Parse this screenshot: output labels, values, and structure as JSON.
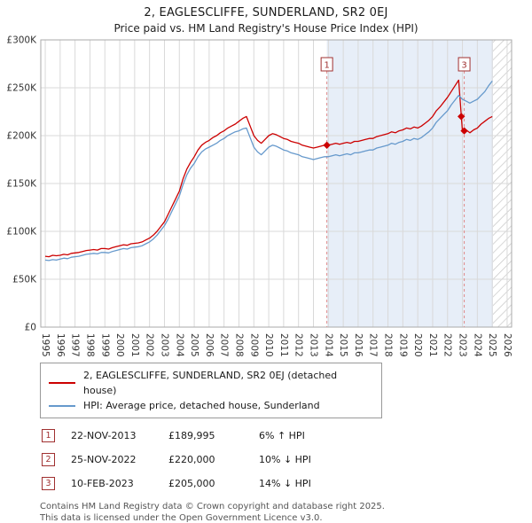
{
  "title": "2, EAGLESCLIFFE, SUNDERLAND, SR2 0EJ",
  "subtitle": "Price paid vs. HM Land Registry's House Price Index (HPI)",
  "chart_data": {
    "type": "line",
    "y_values_in": "GBP thousands",
    "xlim": [
      1994.7,
      2026.3
    ],
    "ylim": [
      0,
      300
    ],
    "x_ticks": [
      1995,
      1996,
      1997,
      1998,
      1999,
      2000,
      2001,
      2002,
      2003,
      2004,
      2005,
      2006,
      2007,
      2008,
      2009,
      2010,
      2011,
      2012,
      2013,
      2014,
      2015,
      2016,
      2017,
      2018,
      2019,
      2020,
      2021,
      2022,
      2023,
      2024,
      2025,
      2026
    ],
    "y_ticks": [
      0,
      50,
      100,
      150,
      200,
      250,
      300
    ],
    "y_tick_labels": [
      "£0",
      "£50K",
      "£100K",
      "£150K",
      "£200K",
      "£250K",
      "£300K"
    ],
    "grid": true,
    "legend_position": "below",
    "x_start": 1995,
    "x_step": 0.25,
    "shaded_region": [
      2013.9,
      2025.05
    ],
    "hatched_region": [
      2025.05,
      2026.3
    ],
    "colors": {
      "red_series": "#cc0000",
      "blue_series": "#6699cc",
      "shaded": "#e7eef8",
      "dashed": "#e08888",
      "grid": "#d9d9d9",
      "axis": "#aaaaaa",
      "marker_box": "#a03030"
    },
    "series": [
      {
        "name": "2, EAGLESCLIFFE, SUNDERLAND, SR2 0EJ (detached house)",
        "color": "#cc0000",
        "values": [
          74,
          73.5,
          75,
          74.5,
          75,
          76,
          75.5,
          77,
          77.5,
          78,
          79,
          80,
          80.5,
          81,
          80.5,
          82,
          82,
          81.5,
          83,
          84,
          85,
          86,
          85.5,
          87,
          87.5,
          88,
          89,
          91,
          93,
          96,
          100,
          105,
          110,
          118,
          126,
          134,
          142,
          155,
          165,
          172,
          178,
          185,
          190,
          193,
          195,
          198,
          200,
          203,
          205,
          208,
          210,
          212,
          215,
          218,
          220,
          210,
          200,
          195,
          192,
          196,
          200,
          202,
          201,
          199,
          197,
          196,
          194,
          193,
          192,
          190,
          189,
          188,
          187,
          188,
          189,
          190,
          190,
          191,
          192,
          191,
          192,
          193,
          192,
          194,
          194,
          195,
          196,
          197,
          197,
          199,
          200,
          201,
          202,
          204,
          203,
          205,
          206,
          208,
          207,
          209,
          208,
          210,
          213,
          216,
          220,
          226,
          230,
          235,
          240,
          246,
          252,
          258,
          205,
          206,
          203,
          206,
          208,
          212,
          215,
          218,
          220
        ]
      },
      {
        "name": "HPI: Average price, detached house, Sunderland",
        "color": "#6699cc",
        "values": [
          70,
          69.5,
          70.5,
          70,
          71,
          72,
          71.5,
          73,
          73.5,
          74,
          75,
          76,
          76.5,
          77,
          76.5,
          78,
          78,
          77.5,
          79,
          80,
          81,
          82,
          81.5,
          83,
          83.5,
          84,
          85,
          87,
          89,
          92,
          96,
          101,
          106,
          113,
          121,
          129,
          137,
          149,
          159,
          166,
          171,
          178,
          183,
          186,
          188,
          190,
          192,
          195,
          197,
          200,
          202,
          204,
          205,
          207,
          208,
          198,
          188,
          183,
          180,
          184,
          188,
          190,
          189,
          187,
          185,
          184,
          182,
          181,
          180,
          178,
          177,
          176,
          175,
          176,
          177,
          178,
          178,
          179,
          180,
          179,
          180,
          181,
          180,
          182,
          182,
          183,
          184,
          185,
          185,
          187,
          188,
          189,
          190,
          192,
          191,
          193,
          194,
          196,
          195,
          197,
          196,
          198,
          201,
          204,
          208,
          214,
          218,
          222,
          226,
          232,
          237,
          242,
          238,
          236,
          234,
          236,
          238,
          242,
          246,
          252,
          257
        ]
      }
    ],
    "markers": [
      {
        "label": "1",
        "x": 2013.9,
        "y": 189.995,
        "dashed_line": true,
        "box": true
      },
      {
        "label": "2",
        "x": 2022.92,
        "y": 220,
        "dashed_line": false,
        "box": false
      },
      {
        "label": "3",
        "x": 2023.12,
        "y": 205,
        "dashed_line": true,
        "box": true
      }
    ]
  },
  "transactions": [
    {
      "num": "1",
      "date": "22-NOV-2013",
      "price": "£189,995",
      "hpi": "6% ↑ HPI"
    },
    {
      "num": "2",
      "date": "25-NOV-2022",
      "price": "£220,000",
      "hpi": "10% ↓ HPI"
    },
    {
      "num": "3",
      "date": "10-FEB-2023",
      "price": "£205,000",
      "hpi": "14% ↓ HPI"
    }
  ],
  "footer": {
    "line1": "Contains HM Land Registry data © Crown copyright and database right 2025.",
    "line2": "This data is licensed under the Open Government Licence v3.0."
  }
}
